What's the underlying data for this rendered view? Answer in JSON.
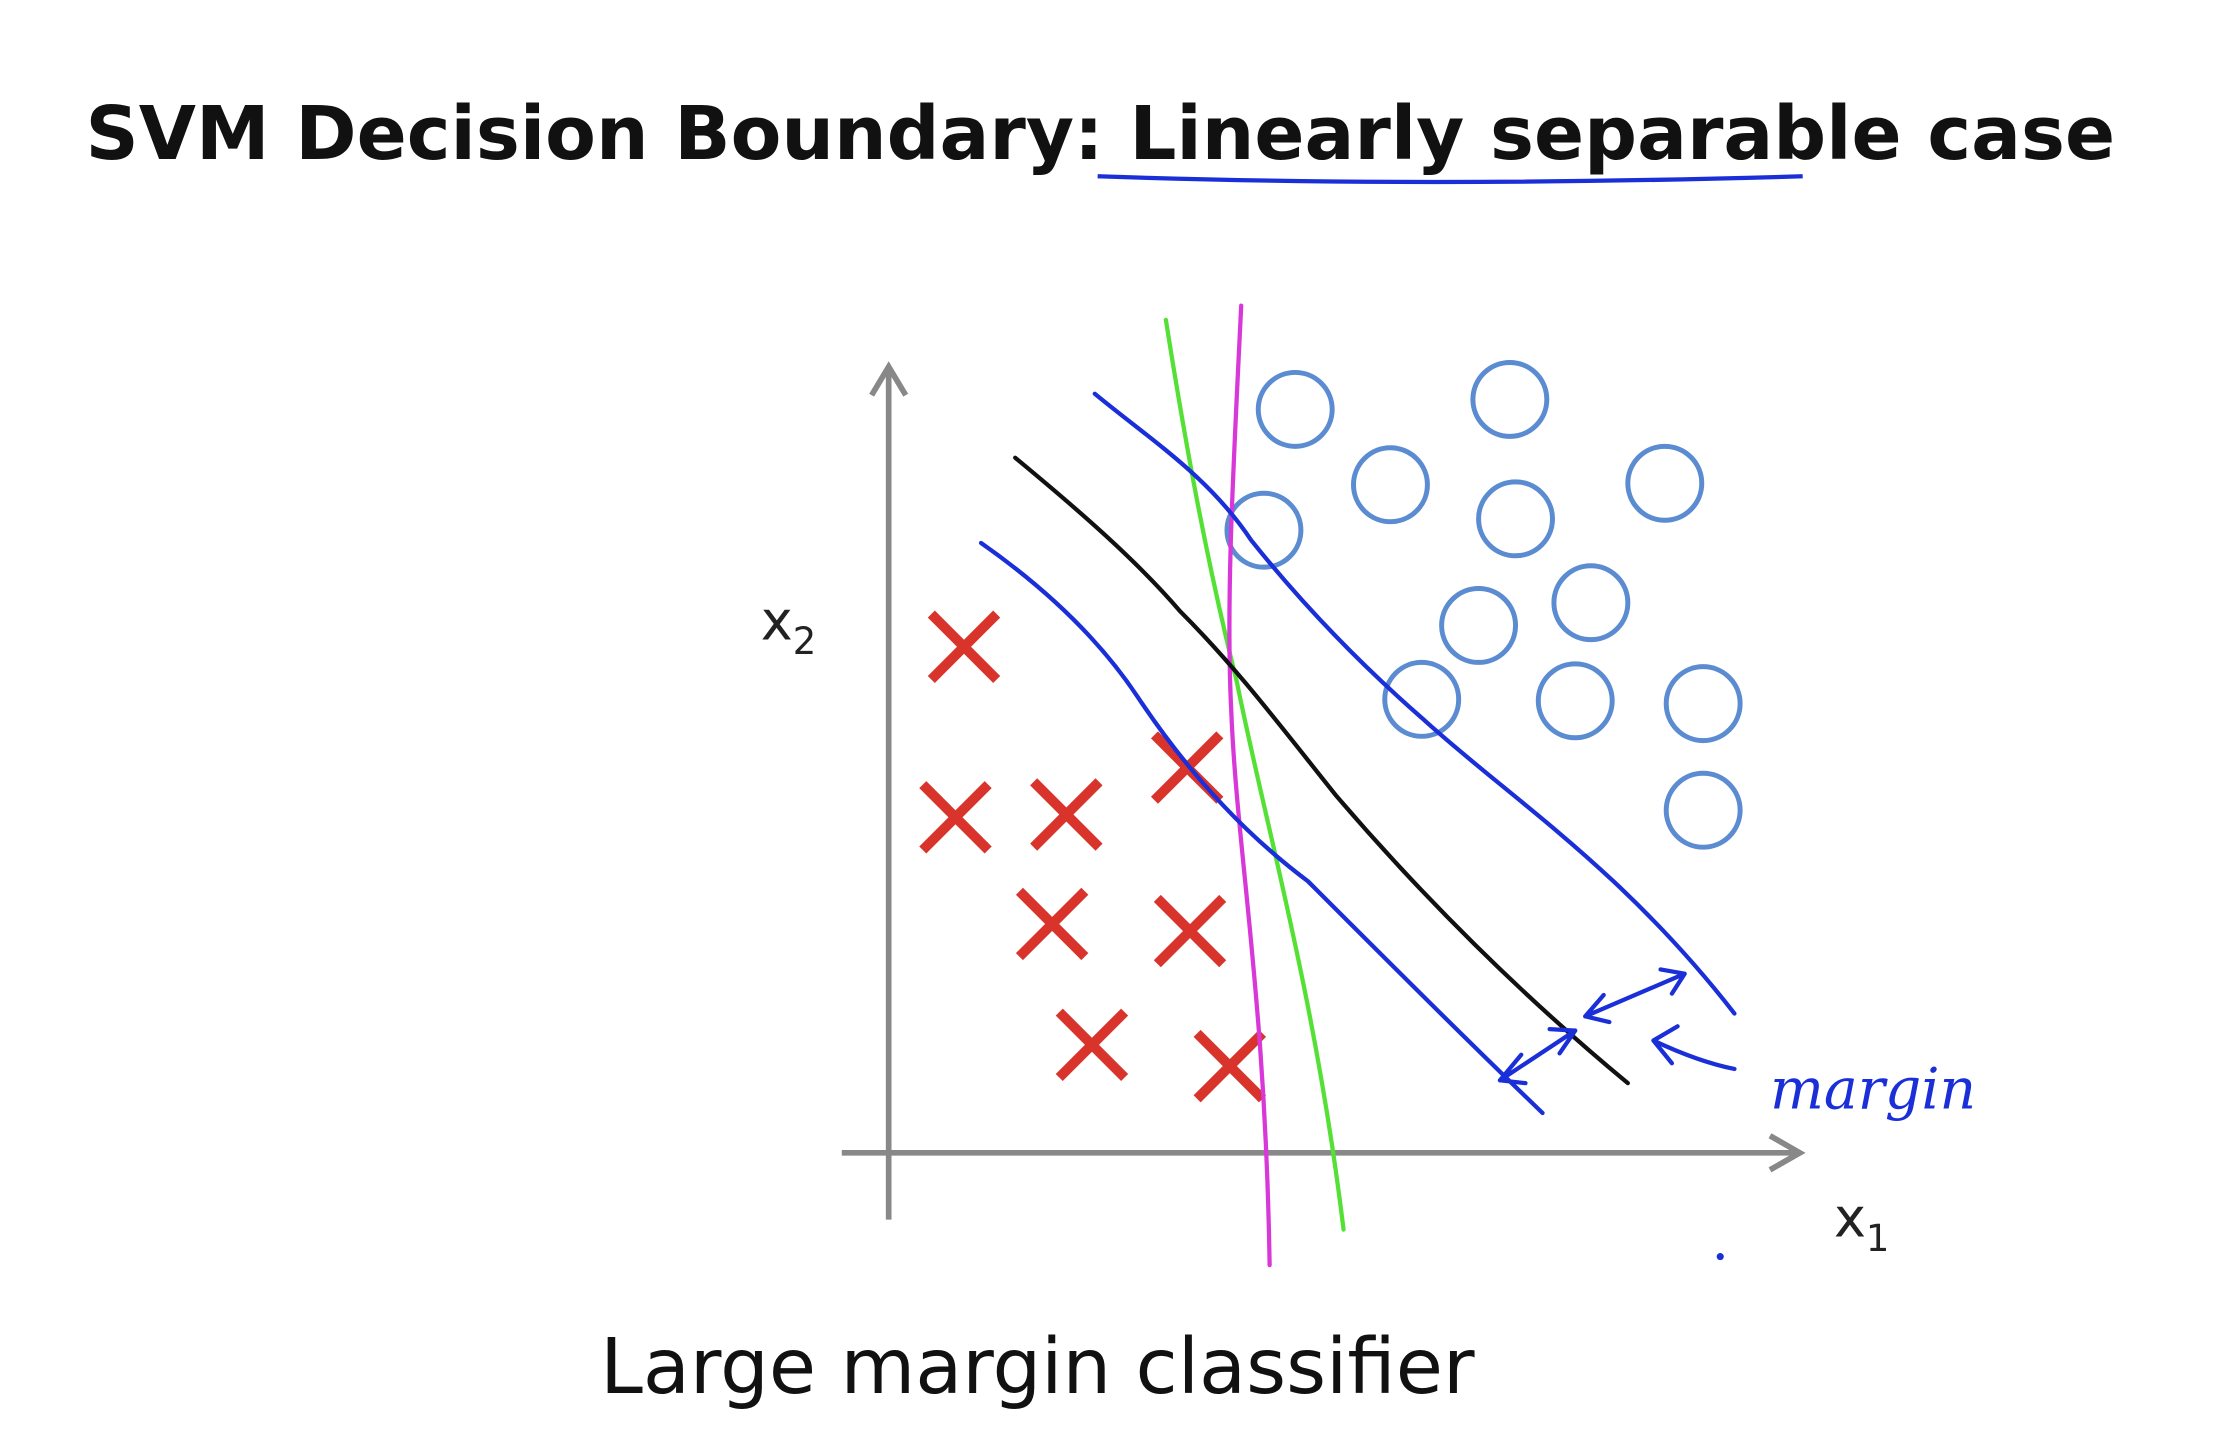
{
  "title": {
    "lead": "SVM Decision Boundary: ",
    "underlined": "Linearly separable",
    "tail": " case"
  },
  "axes": {
    "y_label": {
      "base": "x",
      "sub": "2"
    },
    "x_label": {
      "base": "x",
      "sub": "1"
    }
  },
  "annotation": "margin",
  "caption": "Large margin classifier"
}
